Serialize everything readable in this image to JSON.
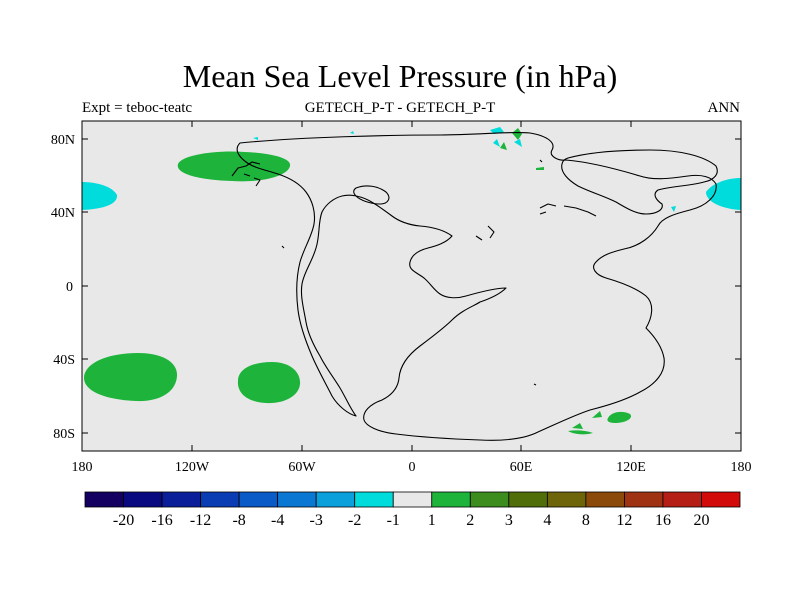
{
  "title": "Mean Sea Level Pressure (in hPa)",
  "subtitle_left": "Expt = teboc-teatc",
  "subtitle_center": "GETECH_P-T - GETECH_P-T",
  "subtitle_right": "ANN",
  "lon_ticks": [
    "180",
    "120W",
    "60W",
    "0",
    "60E",
    "120E",
    "180"
  ],
  "lat_ticks": [
    "80N",
    "40N",
    "0",
    "40S",
    "80S"
  ],
  "colorbar": {
    "colors": [
      "#140060",
      "#0a0a80",
      "#0a1e9a",
      "#0a3cb4",
      "#0a5ac8",
      "#0a78d2",
      "#0aa0dc",
      "#00dcdc",
      "#e8e8e8",
      "#1eb43c",
      "#3c8c1e",
      "#506e0a",
      "#6e640a",
      "#8c4a0a",
      "#a03214",
      "#b41e14",
      "#d20a0a"
    ],
    "labels": [
      "-20",
      "-16",
      "-12",
      "-8",
      "-4",
      "-3",
      "-2",
      "-1",
      "1",
      "2",
      "3",
      "4",
      "8",
      "12",
      "16",
      "20"
    ]
  },
  "colors": {
    "background": "#e8e8e8",
    "positive": "#1eb43c",
    "negative": "#00dcdc",
    "coast": "#000000"
  }
}
